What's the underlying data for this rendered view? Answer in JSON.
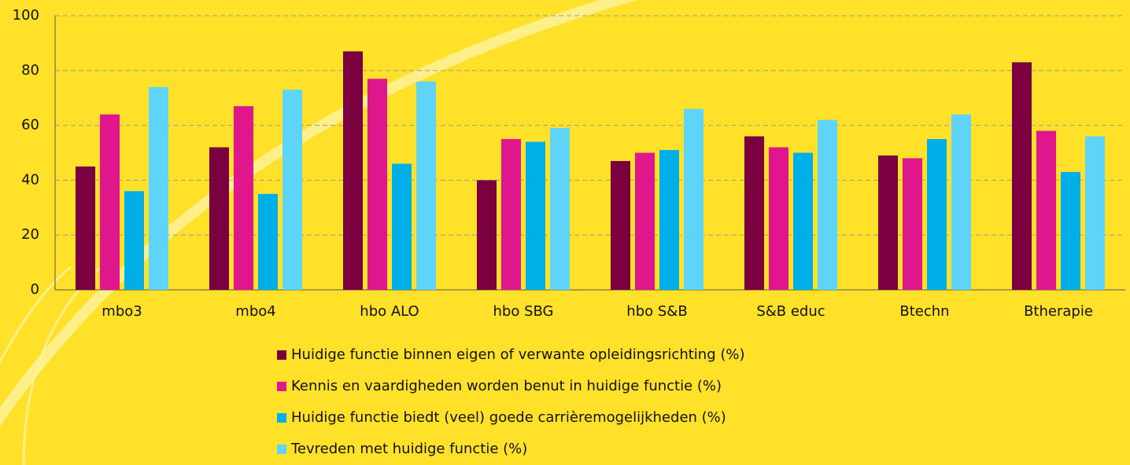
{
  "chart_data": {
    "type": "bar",
    "categories": [
      "mbo3",
      "mbo4",
      "hbo ALO",
      "hbo SBG",
      "hbo S&B",
      "S&B educ",
      "Btechn",
      "Btherapie"
    ],
    "series": [
      {
        "name": "Huidige functie binnen eigen of verwante opleidingsrichting (%)",
        "color": "#7a0040",
        "values": [
          45,
          52,
          87,
          40,
          47,
          56,
          49,
          83
        ]
      },
      {
        "name": "Kennis en vaardigheden worden benut in huidige functie (%)",
        "color": "#e0168c",
        "values": [
          64,
          67,
          77,
          55,
          50,
          52,
          48,
          58
        ]
      },
      {
        "name": "Huidige functie biedt (veel) goede carrièremogelijkheden (%)",
        "color": "#00aee8",
        "values": [
          36,
          35,
          46,
          54,
          51,
          50,
          55,
          43
        ]
      },
      {
        "name": "Tevreden met huidige functie (%)",
        "color": "#5dd4f8",
        "values": [
          74,
          73,
          76,
          59,
          66,
          62,
          64,
          56
        ]
      }
    ],
    "ylim": [
      0,
      100
    ],
    "yticks": [
      0,
      20,
      40,
      60,
      80,
      100
    ],
    "grid": true,
    "legend": "bottom"
  }
}
